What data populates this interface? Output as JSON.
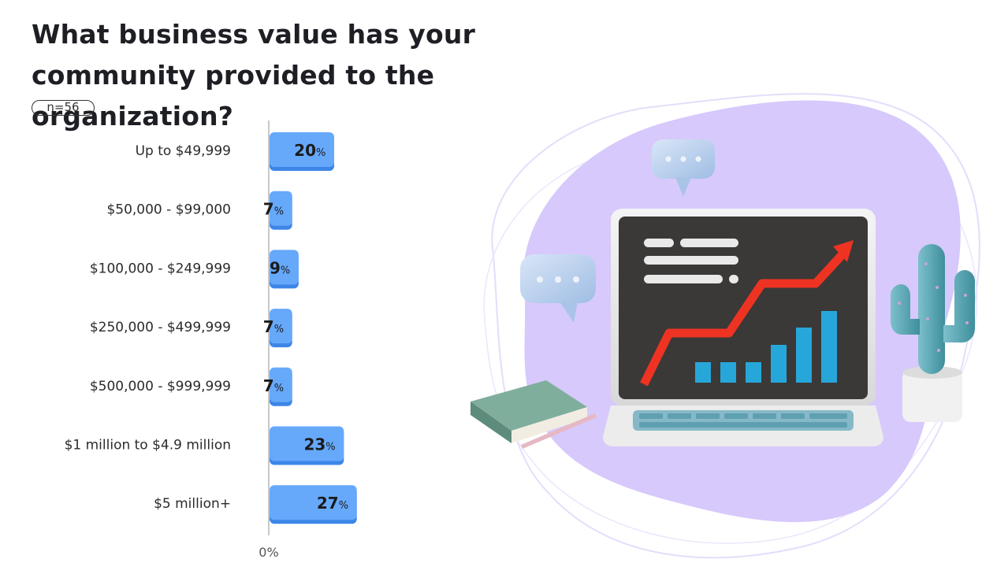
{
  "title": "What business value has your community provided to the organization?",
  "sample_size": "n=56",
  "chart_data": {
    "type": "bar",
    "orientation": "horizontal",
    "categories": [
      "Up to $49,999",
      "$50,000 - $99,000",
      "$100,000 - $249,999",
      "$250,000 - $499,999",
      "$500,000 - $999,999",
      "$1 million to $4.9 million",
      "$5 million+"
    ],
    "values": [
      20,
      7,
      9,
      7,
      7,
      23,
      27
    ],
    "data_labels": [
      "20",
      "7",
      "9 ",
      "7",
      "7",
      "23",
      "27"
    ],
    "unit": "%",
    "x_tick_label": "0%",
    "xlim": [
      0,
      100
    ],
    "bar_color": "#66a9fb"
  },
  "colors": {
    "bar": "#66a9fb",
    "bar_shadow": "#3d86e8",
    "blob": "#d6c8fb",
    "outline": "#e2dafb",
    "screen": "#3a3937",
    "arrow": "#ee3323",
    "bars_on_screen": "#27a7d9",
    "book": "#7fae9d",
    "cactus": "#5aa6b4"
  },
  "illustration": {
    "name": "laptop-growth-illustration"
  }
}
